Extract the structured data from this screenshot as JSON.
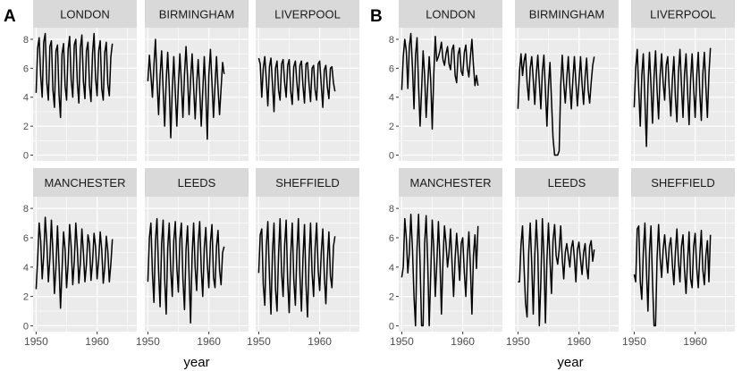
{
  "chart_data": [
    {
      "type": "line",
      "panel_label": "A",
      "xlabel": "year",
      "ylabel": "",
      "xlim": [
        1949.5,
        1966.5
      ],
      "ylim": [
        -0.4,
        8.8
      ],
      "x_ticks": [
        1950,
        1960
      ],
      "y_ticks": [
        0,
        2,
        4,
        6,
        8
      ],
      "grid": true,
      "x_start": 1950,
      "x_step": 0.25,
      "facets": [
        {
          "name": "LONDON",
          "values": [
            4.3,
            7.4,
            8.1,
            5.5,
            4.0,
            7.8,
            8.4,
            5.0,
            3.8,
            7.5,
            7.9,
            4.5,
            3.3,
            7.2,
            7.6,
            4.2,
            2.6,
            7.0,
            7.7,
            4.8,
            3.8,
            7.3,
            8.2,
            5.2,
            4.0,
            7.6,
            8.0,
            5.0,
            3.6,
            7.4,
            8.3,
            5.1,
            3.9,
            7.2,
            7.8,
            4.8,
            3.7,
            7.0,
            8.4,
            5.3,
            4.1,
            7.2,
            7.9,
            4.6,
            3.8,
            7.1,
            7.8,
            4.9,
            4.1,
            6.8,
            7.7
          ]
        },
        {
          "name": "BIRMINGHAM",
          "values": [
            5.1,
            6.9,
            5.5,
            4.0,
            6.2,
            8.0,
            5.2,
            2.8,
            5.5,
            7.2,
            4.5,
            2.0,
            5.1,
            7.1,
            4.8,
            1.2,
            4.5,
            6.8,
            4.3,
            2.0,
            4.8,
            7.0,
            5.0,
            2.6,
            5.6,
            7.5,
            5.4,
            2.8,
            5.2,
            7.0,
            4.7,
            2.5,
            4.9,
            6.6,
            4.5,
            2.0,
            4.4,
            6.8,
            4.3,
            1.1,
            5.5,
            7.3,
            5.0,
            2.6,
            4.8,
            6.8,
            4.6,
            2.8,
            4.6,
            6.4,
            5.6
          ]
        },
        {
          "name": "LIVERPOOL",
          "values": [
            6.7,
            6.3,
            4.0,
            6.0,
            6.8,
            5.2,
            3.4,
            6.1,
            6.7,
            4.9,
            3.0,
            6.0,
            6.5,
            4.5,
            3.8,
            6.3,
            6.6,
            5.0,
            4.0,
            6.2,
            6.6,
            4.4,
            3.5,
            6.1,
            6.5,
            5.0,
            3.8,
            6.2,
            6.5,
            4.8,
            3.6,
            6.3,
            6.4,
            4.9,
            3.7,
            6.0,
            6.2,
            4.5,
            3.8,
            6.3,
            6.5,
            4.8,
            3.3,
            5.9,
            6.2,
            4.7,
            3.9,
            6.0,
            6.1,
            5.0,
            4.4
          ]
        },
        {
          "name": "MANCHESTER",
          "values": [
            2.5,
            4.5,
            7.0,
            5.8,
            3.2,
            4.8,
            7.4,
            5.6,
            3.0,
            4.6,
            7.2,
            5.0,
            2.2,
            4.0,
            6.8,
            4.2,
            1.2,
            3.8,
            6.4,
            5.2,
            2.6,
            4.2,
            6.9,
            5.4,
            2.8,
            4.4,
            7.0,
            5.3,
            2.9,
            4.3,
            6.6,
            5.0,
            3.0,
            4.2,
            6.2,
            5.6,
            3.1,
            4.3,
            6.3,
            5.4,
            3.2,
            4.5,
            6.4,
            5.2,
            2.9,
            4.0,
            6.1,
            5.1,
            3.0,
            4.2,
            5.9
          ]
        },
        {
          "name": "LEEDS",
          "values": [
            3.0,
            6.0,
            7.0,
            3.6,
            1.6,
            5.8,
            7.3,
            3.7,
            1.3,
            5.6,
            7.2,
            3.2,
            0.8,
            5.3,
            7.0,
            3.8,
            2.0,
            5.8,
            7.1,
            4.0,
            2.3,
            5.9,
            7.0,
            3.2,
            1.1,
            5.2,
            6.8,
            3.5,
            0.2,
            4.8,
            7.0,
            4.0,
            2.4,
            5.7,
            7.1,
            3.9,
            2.0,
            5.3,
            6.7,
            4.2,
            2.6,
            5.7,
            6.9,
            3.3,
            2.6,
            5.4,
            6.5,
            3.8,
            2.8,
            5.0,
            5.4
          ]
        },
        {
          "name": "SHEFFIELD",
          "values": [
            3.6,
            6.2,
            6.6,
            2.8,
            1.4,
            5.4,
            7.1,
            3.4,
            0.8,
            5.0,
            7.0,
            2.5,
            1.0,
            4.9,
            7.3,
            3.6,
            2.0,
            5.5,
            7.2,
            3.0,
            0.9,
            4.8,
            7.0,
            3.2,
            1.4,
            5.0,
            7.3,
            3.4,
            1.0,
            4.6,
            6.9,
            2.8,
            0.6,
            4.5,
            7.0,
            3.6,
            2.0,
            5.3,
            7.0,
            3.8,
            2.4,
            5.0,
            6.6,
            3.4,
            1.5,
            4.4,
            6.4,
            3.4,
            2.6,
            5.4,
            6.1
          ]
        }
      ]
    },
    {
      "type": "line",
      "panel_label": "B",
      "xlabel": "year",
      "ylabel": "",
      "xlim": [
        1949.5,
        1966.5
      ],
      "ylim": [
        -0.4,
        8.8
      ],
      "x_ticks": [
        1950,
        1960
      ],
      "y_ticks": [
        0,
        2,
        4,
        6,
        8
      ],
      "grid": true,
      "x_start": 1950,
      "x_step": 0.25,
      "facets": [
        {
          "name": "LONDON",
          "values": [
            4.5,
            6.8,
            8.0,
            7.2,
            4.6,
            7.5,
            8.4,
            6.0,
            3.2,
            6.9,
            8.1,
            4.8,
            2.0,
            4.5,
            7.2,
            5.5,
            2.6,
            4.8,
            6.8,
            5.2,
            1.8,
            5.5,
            8.2,
            6.5,
            6.8,
            7.2,
            7.8,
            6.6,
            6.2,
            7.0,
            7.5,
            6.3,
            5.9,
            7.3,
            7.6,
            5.5,
            5.0,
            7.0,
            7.4,
            5.8,
            5.5,
            7.1,
            7.6,
            6.0,
            5.4,
            6.8,
            8.0,
            6.2,
            4.8,
            5.5,
            4.8
          ]
        },
        {
          "name": "BIRMINGHAM",
          "values": [
            3.2,
            5.8,
            7.0,
            5.5,
            6.5,
            7.0,
            5.0,
            3.8,
            6.0,
            6.8,
            5.2,
            3.5,
            5.6,
            6.9,
            5.0,
            3.2,
            5.8,
            6.9,
            4.5,
            2.0,
            4.8,
            6.4,
            3.8,
            1.2,
            0.0,
            0.0,
            0.0,
            0.3,
            4.8,
            6.9,
            5.0,
            3.6,
            5.3,
            6.8,
            4.8,
            3.2,
            5.2,
            6.8,
            5.0,
            3.4,
            5.0,
            6.8,
            4.9,
            3.5,
            5.4,
            6.7,
            4.5,
            3.6,
            5.0,
            6.2,
            6.8
          ]
        },
        {
          "name": "LIVERPOOL",
          "values": [
            3.3,
            6.0,
            7.3,
            4.5,
            2.0,
            5.5,
            7.0,
            3.8,
            0.6,
            4.8,
            7.1,
            4.8,
            2.2,
            5.4,
            7.2,
            4.5,
            2.5,
            5.5,
            7.0,
            5.0,
            3.8,
            6.2,
            6.8,
            4.6,
            2.7,
            5.2,
            6.8,
            4.0,
            2.3,
            5.7,
            7.3,
            4.8,
            2.6,
            5.6,
            7.0,
            4.4,
            2.1,
            5.2,
            7.0,
            4.6,
            2.6,
            5.5,
            7.1,
            4.3,
            2.4,
            5.6,
            7.1,
            4.7,
            2.6,
            5.6,
            7.4
          ]
        },
        {
          "name": "MANCHESTER",
          "values": [
            3.3,
            4.0,
            7.3,
            6.0,
            3.6,
            5.0,
            7.6,
            5.2,
            2.0,
            0.0,
            5.3,
            7.6,
            4.2,
            0.0,
            0.0,
            5.6,
            7.5,
            4.4,
            0.0,
            3.5,
            7.2,
            5.3,
            2.0,
            4.2,
            7.1,
            4.5,
            0.8,
            4.4,
            6.8,
            5.6,
            4.0,
            5.0,
            6.6,
            4.2,
            2.0,
            4.6,
            6.3,
            4.8,
            3.1,
            5.6,
            6.0,
            3.6,
            2.0,
            4.8,
            6.4,
            4.0,
            0.8,
            4.8,
            6.2,
            3.9,
            6.8
          ]
        },
        {
          "name": "LEEDS",
          "values": [
            3.0,
            3.0,
            5.5,
            6.8,
            4.0,
            1.5,
            0.6,
            5.0,
            7.0,
            4.2,
            0.8,
            4.8,
            7.2,
            5.0,
            0.0,
            3.0,
            7.3,
            4.8,
            0.2,
            4.5,
            7.0,
            4.5,
            2.2,
            5.8,
            6.9,
            4.8,
            4.2,
            5.2,
            6.8,
            4.6,
            3.2,
            5.0,
            5.6,
            4.8,
            4.0,
            5.3,
            5.8,
            4.6,
            3.0,
            5.2,
            5.7,
            4.5,
            3.5,
            5.0,
            5.6,
            4.0,
            3.2,
            5.4,
            5.8,
            4.4,
            5.2
          ]
        },
        {
          "name": "SHEFFIELD",
          "values": [
            3.5,
            3.0,
            6.6,
            6.8,
            3.0,
            1.8,
            5.0,
            7.0,
            3.8,
            1.0,
            5.0,
            6.8,
            3.0,
            0.0,
            0.0,
            4.6,
            6.9,
            4.6,
            3.3,
            5.2,
            6.2,
            4.8,
            3.6,
            5.4,
            6.0,
            4.2,
            2.8,
            5.0,
            6.6,
            4.4,
            3.0,
            5.4,
            6.2,
            3.8,
            2.2,
            4.4,
            6.4,
            3.2,
            2.6,
            5.4,
            6.3,
            3.9,
            2.6,
            4.8,
            6.5,
            3.8,
            2.8,
            4.8,
            5.8,
            3.0,
            6.2
          ]
        }
      ]
    }
  ]
}
